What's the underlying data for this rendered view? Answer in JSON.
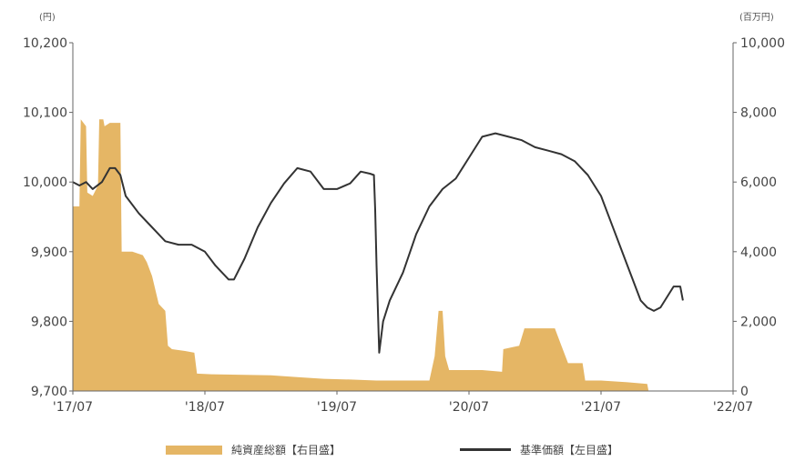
{
  "chart_data": {
    "type": "line",
    "left_unit": "(円)",
    "right_unit": "(百万円)",
    "x_ticks": [
      "'17/07",
      "'18/07",
      "'19/07",
      "'20/07",
      "'21/07",
      "'22/07"
    ],
    "y_left": {
      "ticks": [
        "9,700",
        "9,800",
        "9,900",
        "10,000",
        "10,100",
        "10,200"
      ],
      "min": 9700,
      "max": 10200
    },
    "y_right": {
      "ticks": [
        "0",
        "2,000",
        "4,000",
        "6,000",
        "8,000",
        "10,000"
      ],
      "min": 0,
      "max": 10000
    },
    "x_range": [
      2017.5,
      2022.5
    ],
    "series": [
      {
        "name": "純資産総額【右目盛】",
        "axis": "right",
        "kind": "area",
        "color": "#E5B665",
        "points": [
          [
            2017.5,
            5300
          ],
          [
            2017.55,
            5300
          ],
          [
            2017.56,
            7800
          ],
          [
            2017.6,
            7600
          ],
          [
            2017.61,
            5700
          ],
          [
            2017.65,
            5600
          ],
          [
            2017.69,
            5900
          ],
          [
            2017.7,
            7800
          ],
          [
            2017.73,
            7800
          ],
          [
            2017.74,
            7600
          ],
          [
            2017.78,
            7700
          ],
          [
            2017.86,
            7700
          ],
          [
            2017.87,
            4000
          ],
          [
            2017.95,
            4000
          ],
          [
            2018.03,
            3900
          ],
          [
            2018.06,
            3700
          ],
          [
            2018.1,
            3300
          ],
          [
            2018.15,
            2500
          ],
          [
            2018.2,
            2300
          ],
          [
            2018.22,
            1300
          ],
          [
            2018.25,
            1200
          ],
          [
            2018.35,
            1150
          ],
          [
            2018.42,
            1100
          ],
          [
            2018.44,
            500
          ],
          [
            2018.55,
            480
          ],
          [
            2019.0,
            450
          ],
          [
            2019.2,
            400
          ],
          [
            2019.4,
            350
          ],
          [
            2019.6,
            330
          ],
          [
            2019.8,
            300
          ],
          [
            2020.0,
            300
          ],
          [
            2020.2,
            300
          ],
          [
            2020.24,
            1000
          ],
          [
            2020.27,
            2300
          ],
          [
            2020.3,
            2300
          ],
          [
            2020.32,
            1000
          ],
          [
            2020.35,
            600
          ],
          [
            2020.6,
            600
          ],
          [
            2020.75,
            550
          ],
          [
            2020.76,
            1200
          ],
          [
            2020.88,
            1300
          ],
          [
            2020.92,
            1800
          ],
          [
            2021.05,
            1800
          ],
          [
            2021.15,
            1800
          ],
          [
            2021.2,
            1300
          ],
          [
            2021.25,
            800
          ],
          [
            2021.36,
            800
          ],
          [
            2021.38,
            300
          ],
          [
            2021.5,
            300
          ],
          [
            2021.7,
            250
          ],
          [
            2021.85,
            200
          ],
          [
            2021.86,
            0
          ],
          [
            2022.5,
            0
          ]
        ]
      },
      {
        "name": "基準価額【左目盛】",
        "axis": "left",
        "kind": "line",
        "color": "#333333",
        "points": [
          [
            2017.5,
            10000
          ],
          [
            2017.55,
            9995
          ],
          [
            2017.6,
            10000
          ],
          [
            2017.65,
            9990
          ],
          [
            2017.72,
            10000
          ],
          [
            2017.78,
            10020
          ],
          [
            2017.82,
            10020
          ],
          [
            2017.86,
            10010
          ],
          [
            2017.9,
            9980
          ],
          [
            2018.0,
            9955
          ],
          [
            2018.1,
            9935
          ],
          [
            2018.2,
            9915
          ],
          [
            2018.3,
            9910
          ],
          [
            2018.4,
            9910
          ],
          [
            2018.5,
            9900
          ],
          [
            2018.58,
            9880
          ],
          [
            2018.68,
            9860
          ],
          [
            2018.72,
            9860
          ],
          [
            2018.8,
            9890
          ],
          [
            2018.9,
            9935
          ],
          [
            2019.0,
            9970
          ],
          [
            2019.1,
            9998
          ],
          [
            2019.2,
            10020
          ],
          [
            2019.3,
            10015
          ],
          [
            2019.4,
            9990
          ],
          [
            2019.5,
            9990
          ],
          [
            2019.6,
            9998
          ],
          [
            2019.68,
            10015
          ],
          [
            2019.75,
            10012
          ],
          [
            2019.78,
            10010
          ],
          [
            2019.79,
            9960
          ],
          [
            2019.8,
            9880
          ],
          [
            2019.82,
            9755
          ],
          [
            2019.85,
            9800
          ],
          [
            2019.9,
            9830
          ],
          [
            2020.0,
            9870
          ],
          [
            2020.1,
            9925
          ],
          [
            2020.2,
            9965
          ],
          [
            2020.3,
            9990
          ],
          [
            2020.4,
            10005
          ],
          [
            2020.5,
            10035
          ],
          [
            2020.6,
            10065
          ],
          [
            2020.7,
            10070
          ],
          [
            2020.8,
            10065
          ],
          [
            2020.9,
            10060
          ],
          [
            2021.0,
            10050
          ],
          [
            2021.1,
            10045
          ],
          [
            2021.2,
            10040
          ],
          [
            2021.3,
            10030
          ],
          [
            2021.4,
            10010
          ],
          [
            2021.5,
            9980
          ],
          [
            2021.6,
            9930
          ],
          [
            2021.7,
            9880
          ],
          [
            2021.8,
            9830
          ],
          [
            2021.85,
            9820
          ],
          [
            2021.9,
            9815
          ],
          [
            2021.95,
            9820
          ],
          [
            2022.0,
            9835
          ],
          [
            2022.05,
            9850
          ],
          [
            2022.1,
            9850
          ],
          [
            2022.12,
            9830
          ]
        ]
      }
    ]
  }
}
